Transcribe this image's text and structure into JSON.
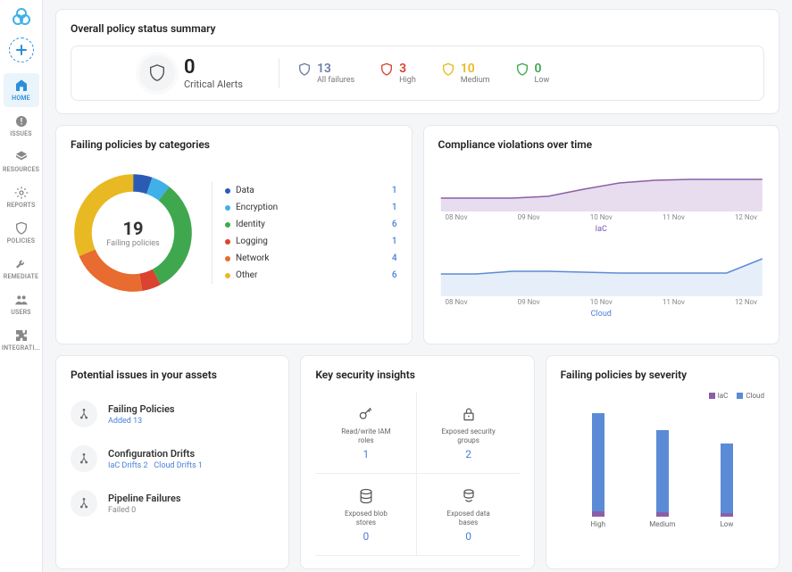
{
  "sidebar": {
    "items": [
      {
        "label": "HOME",
        "icon": "home",
        "active": true
      },
      {
        "label": "ISSUES",
        "icon": "alert"
      },
      {
        "label": "RESOURCES",
        "icon": "layers"
      },
      {
        "label": "REPORTS",
        "icon": "gear"
      },
      {
        "label": "POLICIES",
        "icon": "shield"
      },
      {
        "label": "REMEDIATE",
        "icon": "wrench"
      },
      {
        "label": "USERS",
        "icon": "users"
      },
      {
        "label": "INTEGRATI...",
        "icon": "puzzle"
      }
    ]
  },
  "summary": {
    "title": "Overall policy status summary",
    "critical": {
      "count": "0",
      "label": "Critical Alerts"
    },
    "stats": [
      {
        "count": "13",
        "label": "All failures",
        "color": "#6b7da8"
      },
      {
        "count": "3",
        "label": "High",
        "color": "#d9432f"
      },
      {
        "count": "10",
        "label": "Medium",
        "color": "#e8b923"
      },
      {
        "count": "0",
        "label": "Low",
        "color": "#3fa84f"
      }
    ]
  },
  "donut": {
    "title": "Failing policies by categories",
    "center_count": "19",
    "center_label": "Failing policies",
    "segments": [
      {
        "label": "Data",
        "value": "1",
        "color": "#2b5bb5",
        "pct": 5.3
      },
      {
        "label": "Encryption",
        "value": "1",
        "color": "#3fb0e8",
        "pct": 5.3
      },
      {
        "label": "Identity",
        "value": "6",
        "color": "#3fa84f",
        "pct": 31.6
      },
      {
        "label": "Logging",
        "value": "1",
        "color": "#d9432f",
        "pct": 5.3
      },
      {
        "label": "Network",
        "value": "4",
        "color": "#e86b2f",
        "pct": 21.0
      },
      {
        "label": "Other",
        "value": "6",
        "color": "#e8b923",
        "pct": 31.6
      }
    ]
  },
  "compliance": {
    "title": "Compliance violations over time",
    "xticks": [
      "08 Nov",
      "09 Nov",
      "10 Nov",
      "11 Nov",
      "12 Nov"
    ],
    "series": [
      {
        "label": "IaC",
        "color": "#8b5fa8",
        "fill": "#e8dcef",
        "points": [
          35,
          35,
          35,
          33,
          25,
          18,
          15,
          14,
          14,
          14
        ]
      },
      {
        "label": "Cloud",
        "color": "#5b8bd6",
        "fill": "#e6eef9",
        "points": [
          25,
          25,
          22,
          22,
          23,
          24,
          24,
          24,
          24,
          8
        ]
      }
    ]
  },
  "issues": {
    "title": "Potential issues in your assets",
    "items": [
      {
        "title": "Failing Policies",
        "sub_html": "Added 13"
      },
      {
        "title": "Configuration Drifts",
        "sub_html": "IaC Drifts 2    Cloud Drifts 1"
      },
      {
        "title": "Pipeline Failures",
        "sub_html_muted": "Failed 0"
      }
    ]
  },
  "insights": {
    "title": "Key security insights",
    "cells": [
      {
        "icon": "key",
        "label": "Read/write IAM roles",
        "value": "1"
      },
      {
        "icon": "lock",
        "label": "Exposed security groups",
        "value": "2"
      },
      {
        "icon": "db",
        "label": "Exposed blob stores",
        "value": "0"
      },
      {
        "icon": "db2",
        "label": "Exposed data bases",
        "value": "0"
      }
    ]
  },
  "severity": {
    "title": "Failing policies by severity",
    "legend": [
      {
        "label": "IaC",
        "color": "#8b5fa8"
      },
      {
        "label": "Cloud",
        "color": "#5b8bd6"
      }
    ],
    "bars": [
      {
        "label": "High",
        "iac": 6,
        "cloud": 110,
        "colors": [
          "#8b5fa8",
          "#5b8bd6"
        ]
      },
      {
        "label": "Medium",
        "iac": 5,
        "cloud": 92,
        "colors": [
          "#8b5fa8",
          "#5b8bd6"
        ]
      },
      {
        "label": "Low",
        "iac": 4,
        "cloud": 78,
        "colors": [
          "#8b5fa8",
          "#5b8bd6"
        ]
      }
    ]
  }
}
